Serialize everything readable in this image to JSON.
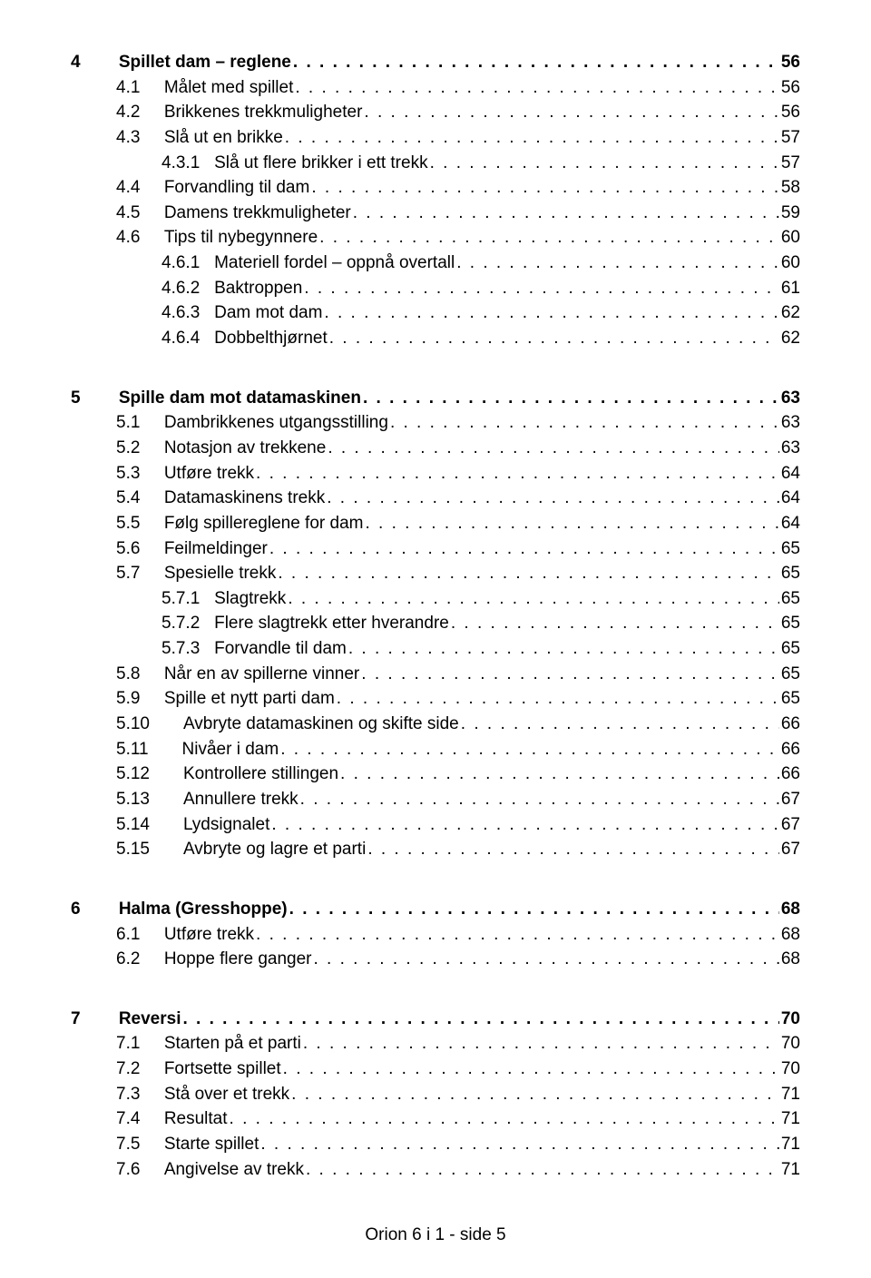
{
  "sections": [
    {
      "entries": [
        {
          "level": 0,
          "num": "4",
          "title": "Spillet dam – reglene",
          "page": "56",
          "bold": true
        },
        {
          "level": 1,
          "num": "4.1",
          "title": "Målet med spillet",
          "page": "56"
        },
        {
          "level": 1,
          "num": "4.2",
          "title": "Brikkenes trekkmuligheter",
          "page": "56"
        },
        {
          "level": 1,
          "num": "4.3",
          "title": "Slå ut en brikke",
          "page": "57"
        },
        {
          "level": 2,
          "num": "4.3.1",
          "title": "Slå ut flere brikker i ett trekk",
          "page": "57"
        },
        {
          "level": 1,
          "num": "4.4",
          "title": "Forvandling til dam",
          "page": "58"
        },
        {
          "level": 1,
          "num": "4.5",
          "title": "Damens trekkmuligheter",
          "page": "59"
        },
        {
          "level": 1,
          "num": "4.6",
          "title": "Tips til nybegynnere",
          "page": "60"
        },
        {
          "level": 2,
          "num": "4.6.1",
          "title": "Materiell fordel – oppnå overtall",
          "page": "60"
        },
        {
          "level": 2,
          "num": "4.6.2",
          "title": "Baktroppen",
          "page": "61"
        },
        {
          "level": 2,
          "num": "4.6.3",
          "title": "Dam mot dam",
          "page": "62"
        },
        {
          "level": 2,
          "num": "4.6.4",
          "title": "Dobbelthjørnet",
          "page": "62"
        }
      ]
    },
    {
      "entries": [
        {
          "level": 0,
          "num": "5",
          "title": "Spille dam mot datamaskinen",
          "page": "63",
          "bold": true
        },
        {
          "level": 1,
          "num": "5.1",
          "title": "Dambrikkenes utgangsstilling",
          "page": "63"
        },
        {
          "level": 1,
          "num": "5.2",
          "title": "Notasjon av trekkene",
          "page": "63"
        },
        {
          "level": 1,
          "num": "5.3",
          "title": "Utføre trekk",
          "page": "64"
        },
        {
          "level": 1,
          "num": "5.4",
          "title": "Datamaskinens trekk",
          "page": "64"
        },
        {
          "level": 1,
          "num": "5.5",
          "title": "Følg spillereglene for dam",
          "page": "64"
        },
        {
          "level": 1,
          "num": "5.6",
          "title": "Feilmeldinger",
          "page": "65"
        },
        {
          "level": 1,
          "num": "5.7",
          "title": "Spesielle trekk",
          "page": "65"
        },
        {
          "level": 2,
          "num": "5.7.1",
          "title": "Slagtrekk",
          "page": "65"
        },
        {
          "level": 2,
          "num": "5.7.2",
          "title": "Flere slagtrekk etter hverandre",
          "page": "65"
        },
        {
          "level": 2,
          "num": "5.7.3",
          "title": "Forvandle til dam",
          "page": "65"
        },
        {
          "level": 1,
          "num": "5.8",
          "title": "Når en av spillerne vinner",
          "page": "65"
        },
        {
          "level": 1,
          "num": "5.9",
          "title": "Spille et nytt parti dam",
          "page": "65"
        },
        {
          "level": 1,
          "num": "5.10",
          "title": "Avbryte datamaskinen og skifte side",
          "page": "66"
        },
        {
          "level": 1,
          "num": "5.11",
          "title": "Nivåer i dam",
          "page": "66"
        },
        {
          "level": 1,
          "num": "5.12",
          "title": "Kontrollere stillingen",
          "page": "66"
        },
        {
          "level": 1,
          "num": "5.13",
          "title": "Annullere trekk",
          "page": "67"
        },
        {
          "level": 1,
          "num": "5.14",
          "title": "Lydsignalet",
          "page": "67"
        },
        {
          "level": 1,
          "num": "5.15",
          "title": "Avbryte og lagre et parti",
          "page": "67"
        }
      ]
    },
    {
      "entries": [
        {
          "level": 0,
          "num": "6",
          "title": "Halma (Gresshoppe)",
          "page": "68",
          "bold": true
        },
        {
          "level": 1,
          "num": "6.1",
          "title": "Utføre trekk",
          "page": "68"
        },
        {
          "level": 1,
          "num": "6.2",
          "title": "Hoppe flere ganger",
          "page": "68"
        }
      ]
    },
    {
      "entries": [
        {
          "level": 0,
          "num": "7",
          "title": "Reversi",
          "page": "70",
          "bold": true
        },
        {
          "level": 1,
          "num": "7.1",
          "title": "Starten på et parti",
          "page": "70"
        },
        {
          "level": 1,
          "num": "7.2",
          "title": "Fortsette spillet",
          "page": "70"
        },
        {
          "level": 1,
          "num": "7.3",
          "title": "Stå over et trekk",
          "page": "71"
        },
        {
          "level": 1,
          "num": "7.4",
          "title": "Resultat",
          "page": "71"
        },
        {
          "level": 1,
          "num": "7.5",
          "title": "Starte spillet",
          "page": "71"
        },
        {
          "level": 1,
          "num": "7.6",
          "title": "Angivelse av trekk",
          "page": "71"
        }
      ]
    }
  ],
  "num_pad": {
    "0": {
      "sub2": "        "
    },
    "1": {
      "1": "     ",
      "2": "       "
    },
    "2": {
      "1": "   ",
      "2": "     "
    }
  },
  "footer": "Orion 6 i 1  -  side 5",
  "dots": ". . . . . . . . . . . . . . . . . . . . . . . . . . . . . . . . . . . . . . . . . . . . . . . . . . . . . . . . . . . . . . . . . . . . . . . . . . . . . . . . . . . . . . . . . . . . . . . . . . . . . . . . . . . . . . . . . . . ."
}
